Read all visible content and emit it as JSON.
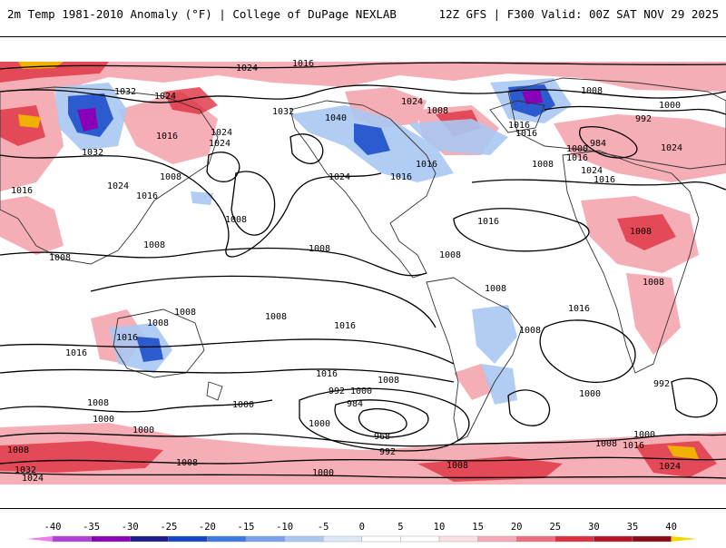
{
  "header": {
    "left_title": "2m Temp 1981-2010 Anomaly (°F) | College of DuPage NEXLAB",
    "right_title": "12Z GFS | F300 Valid: 00Z SAT NOV 29 2025"
  },
  "colorbar": {
    "ticks": [
      "-40",
      "-35",
      "-30",
      "-25",
      "-20",
      "-15",
      "-10",
      "-5",
      "0",
      "5",
      "10",
      "15",
      "20",
      "25",
      "30",
      "35",
      "40"
    ],
    "colors": [
      "#f07cf0",
      "#b040d8",
      "#8a00b8",
      "#1c1c8c",
      "#1446c8",
      "#3c78e6",
      "#78a2ee",
      "#aac8f2",
      "#dceaf8",
      "#ffffff",
      "#ffffff",
      "#fde0e4",
      "#f7aab4",
      "#ef6e7e",
      "#e03040",
      "#b81222",
      "#8c0a16",
      "#f08000",
      "#f0b000",
      "#f0d800"
    ]
  },
  "pressure_labels": [
    {
      "text": "1024"
    },
    {
      "text": "1016"
    },
    {
      "text": "1032"
    },
    {
      "text": "1024"
    },
    {
      "text": "1032"
    },
    {
      "text": "1024"
    },
    {
      "text": "1040"
    },
    {
      "text": "1008"
    },
    {
      "text": "1024"
    },
    {
      "text": "1008"
    },
    {
      "text": "1000"
    },
    {
      "text": "992"
    },
    {
      "text": "984"
    },
    {
      "text": "1024"
    },
    {
      "text": "1016"
    },
    {
      "text": "1016"
    },
    {
      "text": "1016"
    },
    {
      "text": "1024"
    },
    {
      "text": "1016"
    },
    {
      "text": "1008"
    },
    {
      "text": "1024"
    },
    {
      "text": "1016"
    },
    {
      "text": "1032"
    },
    {
      "text": "1016"
    },
    {
      "text": "1008"
    },
    {
      "text": "1016"
    },
    {
      "text": "1024"
    },
    {
      "text": "1000"
    },
    {
      "text": "1016"
    },
    {
      "text": "1024"
    },
    {
      "text": "1016"
    },
    {
      "text": "1016"
    },
    {
      "text": "1008"
    },
    {
      "text": "1008"
    },
    {
      "text": "1008"
    },
    {
      "text": "1008"
    },
    {
      "text": "1008"
    },
    {
      "text": "1008"
    },
    {
      "text": "1008"
    },
    {
      "text": "1016"
    },
    {
      "text": "1008"
    },
    {
      "text": "1008"
    },
    {
      "text": "1008"
    },
    {
      "text": "1008"
    },
    {
      "text": "1016"
    },
    {
      "text": "1008"
    },
    {
      "text": "1016"
    },
    {
      "text": "1016"
    },
    {
      "text": "1016"
    },
    {
      "text": "1008"
    },
    {
      "text": "992"
    },
    {
      "text": "1000"
    },
    {
      "text": "984"
    },
    {
      "text": "1000"
    },
    {
      "text": "1000"
    },
    {
      "text": "1008"
    },
    {
      "text": "1000"
    },
    {
      "text": "992"
    },
    {
      "text": "1000"
    },
    {
      "text": "1000"
    },
    {
      "text": "968"
    },
    {
      "text": "992"
    },
    {
      "text": "1008"
    },
    {
      "text": "1008"
    },
    {
      "text": "1000"
    },
    {
      "text": "1008"
    },
    {
      "text": "1008"
    },
    {
      "text": "1016"
    },
    {
      "text": "1024"
    },
    {
      "text": "1032"
    },
    {
      "text": "1024"
    },
    {
      "text": "1000"
    }
  ]
}
